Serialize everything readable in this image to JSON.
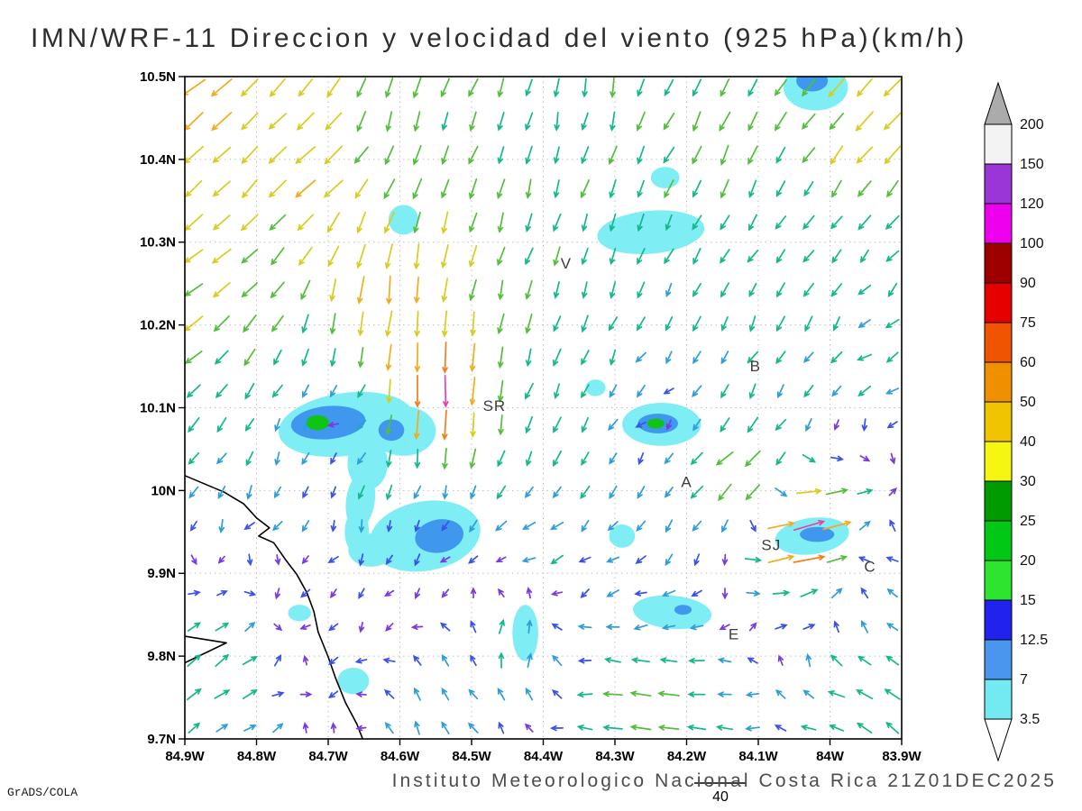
{
  "title": "IMN/WRF-11 Direccion y velocidad del viento (925 hPa)(km/h)",
  "footer": "Instituto Meteorologico Nacional Costa Rica 21Z01DEC2025",
  "credit": "GrADS/COLA",
  "chart_data": {
    "type": "vector_field",
    "units": "km/h",
    "pressure_level": "925 hPa",
    "reference_vector_label": "40",
    "x_axis": {
      "range": [
        -84.9,
        -83.9
      ],
      "ticks": [
        {
          "v": -84.9,
          "label": "84.9W"
        },
        {
          "v": -84.8,
          "label": "84.8W"
        },
        {
          "v": -84.7,
          "label": "84.7W"
        },
        {
          "v": -84.6,
          "label": "84.6W"
        },
        {
          "v": -84.5,
          "label": "84.5W"
        },
        {
          "v": -84.4,
          "label": "84.4W"
        },
        {
          "v": -84.3,
          "label": "84.3W"
        },
        {
          "v": -84.2,
          "label": "84.2W"
        },
        {
          "v": -84.1,
          "label": "84.1W"
        },
        {
          "v": -84.0,
          "label": "84W"
        },
        {
          "v": -83.9,
          "label": "83.9W"
        }
      ]
    },
    "y_axis": {
      "range": [
        9.7,
        10.5
      ],
      "ticks": [
        {
          "v": 10.5,
          "label": "10.5N"
        },
        {
          "v": 10.4,
          "label": "10.4N"
        },
        {
          "v": 10.3,
          "label": "10.3N"
        },
        {
          "v": 10.2,
          "label": "10.2N"
        },
        {
          "v": 10.1,
          "label": "10.1N"
        },
        {
          "v": 10.0,
          "label": "10N"
        },
        {
          "v": 9.9,
          "label": "9.9N"
        },
        {
          "v": 9.8,
          "label": "9.8N"
        },
        {
          "v": 9.7,
          "label": "9.7N"
        }
      ]
    },
    "colorbar": {
      "levels": [
        3.5,
        7,
        12.5,
        15,
        20,
        25,
        30,
        40,
        50,
        60,
        75,
        90,
        100,
        120,
        150,
        200
      ],
      "colors": [
        "#73E9F2",
        "#4A96EE",
        "#2222EE",
        "#2EE42E",
        "#00C814",
        "#009B00",
        "#F6F613",
        "#F0C400",
        "#F09000",
        "#F05400",
        "#E60000",
        "#9E0000",
        "#EE00EE",
        "#9A35D8",
        "#F3F3F3"
      ],
      "cap_top": "#ABABAB",
      "cap_bottom": "#FFFFFF"
    },
    "shade_colors": {
      "low": "#7FEDF4",
      "mid": "#3F97EE",
      "high": "#0FC413"
    },
    "shaded_regions": [
      {
        "x": -84.675,
        "y": 10.08,
        "rx": 0.095,
        "ry": 0.038,
        "rot": -8,
        "band": "low"
      },
      {
        "x": -84.595,
        "y": 10.072,
        "rx": 0.045,
        "ry": 0.03,
        "rot": 0,
        "band": "low"
      },
      {
        "x": -84.645,
        "y": 10.033,
        "rx": 0.028,
        "ry": 0.032,
        "rot": 0,
        "band": "low"
      },
      {
        "x": -84.655,
        "y": 9.988,
        "rx": 0.02,
        "ry": 0.035,
        "rot": 8,
        "band": "low"
      },
      {
        "x": -84.66,
        "y": 9.95,
        "rx": 0.017,
        "ry": 0.026,
        "rot": 0,
        "band": "low"
      },
      {
        "x": -84.565,
        "y": 9.945,
        "rx": 0.078,
        "ry": 0.042,
        "rot": -10,
        "band": "low"
      },
      {
        "x": -84.64,
        "y": 9.928,
        "rx": 0.032,
        "ry": 0.02,
        "rot": 0,
        "band": "low"
      },
      {
        "x": -84.25,
        "y": 10.312,
        "rx": 0.075,
        "ry": 0.026,
        "rot": -5,
        "band": "low"
      },
      {
        "x": -84.23,
        "y": 10.378,
        "rx": 0.02,
        "ry": 0.013,
        "rot": 0,
        "band": "low"
      },
      {
        "x": -84.595,
        "y": 10.327,
        "rx": 0.021,
        "ry": 0.018,
        "rot": 0,
        "band": "low"
      },
      {
        "x": -84.327,
        "y": 10.124,
        "rx": 0.014,
        "ry": 0.01,
        "rot": 0,
        "band": "low"
      },
      {
        "x": -84.235,
        "y": 10.08,
        "rx": 0.055,
        "ry": 0.026,
        "rot": 0,
        "band": "low"
      },
      {
        "x": -84.29,
        "y": 9.945,
        "rx": 0.018,
        "ry": 0.014,
        "rot": 0,
        "band": "low"
      },
      {
        "x": -84.22,
        "y": 9.853,
        "rx": 0.055,
        "ry": 0.02,
        "rot": 5,
        "band": "low"
      },
      {
        "x": -84.025,
        "y": 9.945,
        "rx": 0.052,
        "ry": 0.022,
        "rot": -8,
        "band": "low"
      },
      {
        "x": -84.02,
        "y": 10.487,
        "rx": 0.045,
        "ry": 0.028,
        "rot": 0,
        "band": "low"
      },
      {
        "x": -84.665,
        "y": 9.77,
        "rx": 0.022,
        "ry": 0.016,
        "rot": 0,
        "band": "low"
      },
      {
        "x": -84.74,
        "y": 9.852,
        "rx": 0.016,
        "ry": 0.01,
        "rot": 0,
        "band": "low"
      },
      {
        "x": -84.425,
        "y": 9.828,
        "rx": 0.018,
        "ry": 0.034,
        "rot": 0,
        "band": "low"
      },
      {
        "x": -84.7,
        "y": 10.082,
        "rx": 0.052,
        "ry": 0.02,
        "rot": -5,
        "band": "mid"
      },
      {
        "x": -84.612,
        "y": 10.073,
        "rx": 0.018,
        "ry": 0.013,
        "rot": 0,
        "band": "mid"
      },
      {
        "x": -84.545,
        "y": 9.945,
        "rx": 0.034,
        "ry": 0.02,
        "rot": -10,
        "band": "mid"
      },
      {
        "x": -84.24,
        "y": 10.081,
        "rx": 0.028,
        "ry": 0.012,
        "rot": 0,
        "band": "mid"
      },
      {
        "x": -84.205,
        "y": 9.856,
        "rx": 0.012,
        "ry": 0.006,
        "rot": 0,
        "band": "mid"
      },
      {
        "x": -84.018,
        "y": 9.947,
        "rx": 0.024,
        "ry": 0.009,
        "rot": 0,
        "band": "mid"
      },
      {
        "x": -84.025,
        "y": 10.495,
        "rx": 0.022,
        "ry": 0.013,
        "rot": 0,
        "band": "mid"
      },
      {
        "x": -84.715,
        "y": 10.082,
        "rx": 0.016,
        "ry": 0.009,
        "rot": 0,
        "band": "high"
      },
      {
        "x": -84.243,
        "y": 10.081,
        "rx": 0.012,
        "ry": 0.006,
        "rot": 0,
        "band": "high"
      }
    ],
    "wind_controls": [
      {
        "lon": -84.9,
        "lat": 10.5,
        "u": -38,
        "v": -30
      },
      {
        "lon": -84.72,
        "lat": 10.4,
        "u": -34,
        "v": -26
      },
      {
        "lon": -84.6,
        "lat": 10.47,
        "u": -8,
        "v": -28
      },
      {
        "lon": -84.35,
        "lat": 10.48,
        "u": -4,
        "v": -24
      },
      {
        "lon": -84.15,
        "lat": 10.44,
        "u": -14,
        "v": -27
      },
      {
        "lon": -83.93,
        "lat": 10.46,
        "u": -28,
        "v": -31
      },
      {
        "lon": -84.88,
        "lat": 10.25,
        "u": -30,
        "v": -22
      },
      {
        "lon": -84.62,
        "lat": 10.24,
        "u": -6,
        "v": -48
      },
      {
        "lon": -84.55,
        "lat": 10.12,
        "u": 2,
        "v": -74
      },
      {
        "lon": -84.68,
        "lat": 10.08,
        "u": -4,
        "v": -2
      },
      {
        "lon": -84.23,
        "lat": 10.08,
        "u": -4,
        "v": -3
      },
      {
        "lon": -84.55,
        "lat": 9.94,
        "u": -2,
        "v": -5
      },
      {
        "lon": -83.92,
        "lat": 10.15,
        "u": -14,
        "v": -8
      },
      {
        "lon": -84.08,
        "lat": 10.24,
        "u": -8,
        "v": -16
      },
      {
        "lon": -84.12,
        "lat": 10.02,
        "u": -30,
        "v": -26
      },
      {
        "lon": -84.03,
        "lat": 9.95,
        "u": 74,
        "v": 18
      },
      {
        "lon": -83.93,
        "lat": 9.9,
        "u": -12,
        "v": 6
      },
      {
        "lon": -84.45,
        "lat": 9.82,
        "u": 2,
        "v": 16
      },
      {
        "lon": -84.85,
        "lat": 9.78,
        "u": 18,
        "v": 14
      },
      {
        "lon": -84.7,
        "lat": 9.9,
        "u": -4,
        "v": -4
      },
      {
        "lon": -84.25,
        "lat": 9.73,
        "u": -32,
        "v": 4
      },
      {
        "lon": -83.95,
        "lat": 9.75,
        "u": -20,
        "v": 12
      },
      {
        "lon": -84.55,
        "lat": 9.72,
        "u": -6,
        "v": 10
      },
      {
        "lon": -84.38,
        "lat": 10.08,
        "u": -8,
        "v": -18
      },
      {
        "lon": -84.4,
        "lat": 9.95,
        "u": -10,
        "v": -6
      }
    ],
    "arrow_palette": [
      {
        "max": 5,
        "color": "#7A3AE0"
      },
      {
        "max": 9,
        "color": "#3A52E8"
      },
      {
        "max": 14,
        "color": "#2F9ED8"
      },
      {
        "max": 26,
        "color": "#14B88C"
      },
      {
        "max": 34,
        "color": "#53BE3C"
      },
      {
        "max": 44,
        "color": "#D8CC1E"
      },
      {
        "max": 54,
        "color": "#F0AC1C"
      },
      {
        "max": 68,
        "color": "#F07E1C"
      },
      {
        "max": 90,
        "color": "#EE3FA8"
      },
      {
        "max": 10000,
        "color": "#E010E0"
      }
    ],
    "cities": [
      {
        "label": "V",
        "lon": -84.368,
        "lat": 10.268
      },
      {
        "label": "B",
        "lon": -84.104,
        "lat": 10.144
      },
      {
        "label": "SR",
        "lon": -84.468,
        "lat": 10.096
      },
      {
        "label": "A",
        "lon": -84.2,
        "lat": 10.004
      },
      {
        "label": "SJ",
        "lon": -84.082,
        "lat": 9.928
      },
      {
        "label": "C",
        "lon": -83.944,
        "lat": 9.902
      },
      {
        "label": "E",
        "lon": -84.134,
        "lat": 9.82
      }
    ],
    "coastline": [
      [
        -84.9,
        10.018
      ],
      [
        -84.845,
        9.998
      ],
      [
        -84.818,
        9.984
      ],
      [
        -84.8,
        9.967
      ],
      [
        -84.782,
        9.955
      ],
      [
        -84.797,
        9.945
      ],
      [
        -84.776,
        9.937
      ],
      [
        -84.76,
        9.917
      ],
      [
        -84.744,
        9.899
      ],
      [
        -84.73,
        9.877
      ],
      [
        -84.72,
        9.854
      ],
      [
        -84.714,
        9.829
      ],
      [
        -84.7,
        9.799
      ],
      [
        -84.69,
        9.774
      ],
      [
        -84.676,
        9.744
      ],
      [
        -84.66,
        9.718
      ],
      [
        -84.652,
        9.7
      ]
    ],
    "coast_islet": [
      [
        -84.9,
        9.824
      ],
      [
        -84.842,
        9.816
      ],
      [
        -84.9,
        9.792
      ]
    ]
  }
}
